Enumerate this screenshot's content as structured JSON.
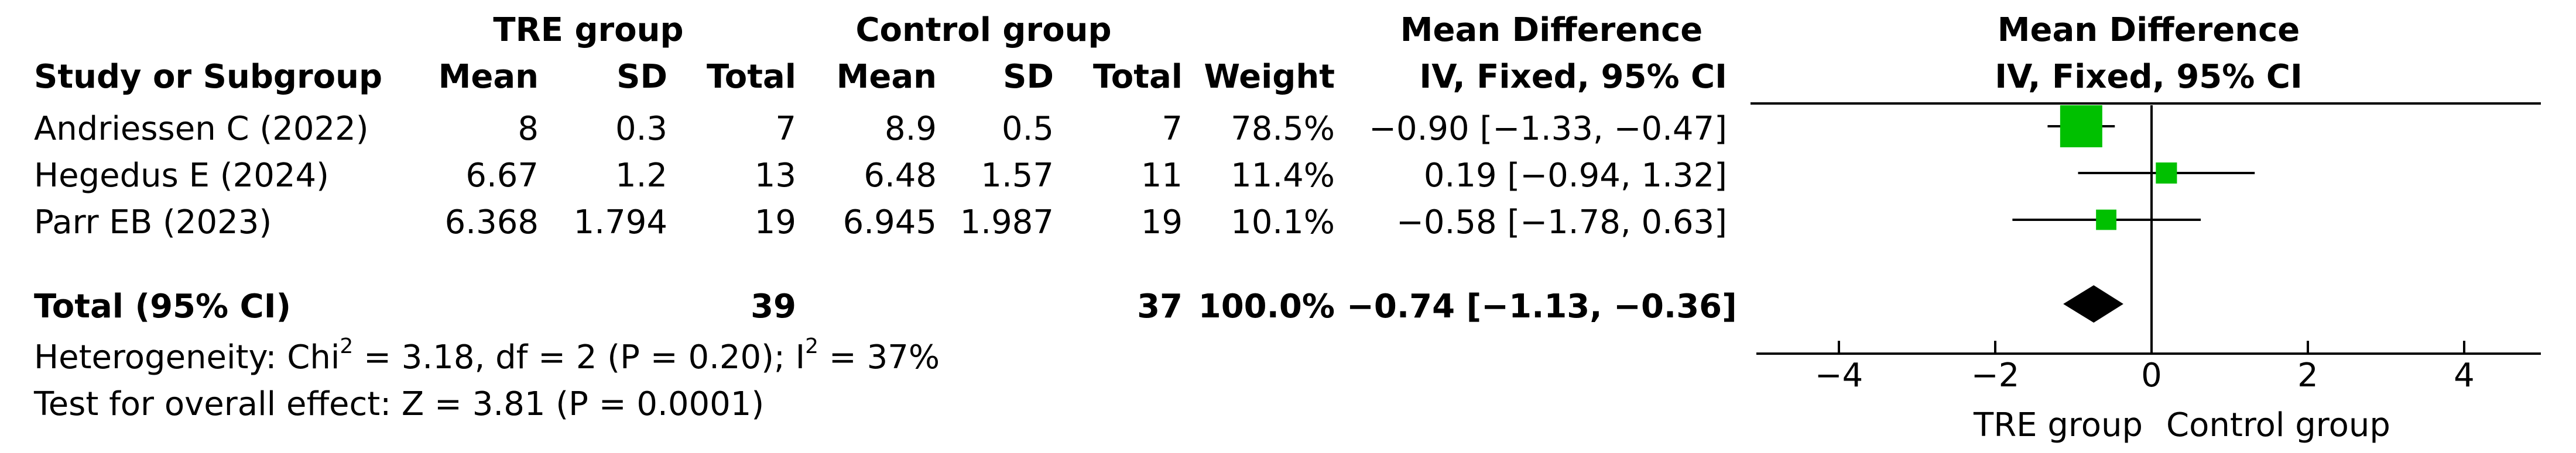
{
  "headers": {
    "tre_group": "TRE group",
    "control_group": "Control group",
    "md_left_title": "Mean Difference",
    "md_right_title": "Mean Difference",
    "study": "Study or Subgroup",
    "tre_mean": "Mean",
    "tre_sd": "SD",
    "tre_total": "Total",
    "ctrl_mean": "Mean",
    "ctrl_sd": "SD",
    "ctrl_total": "Total",
    "weight": "Weight",
    "md_left_method": "IV, Fixed, 95% CI",
    "md_right_method": "IV, Fixed, 95% CI"
  },
  "studies": [
    {
      "name": "Andriessen C (2022)",
      "tre_mean": "8",
      "tre_sd": "0.3",
      "tre_total": "7",
      "ctrl_mean": "8.9",
      "ctrl_sd": "0.5",
      "ctrl_total": "7",
      "weight": "78.5%",
      "ci_text": "−0.90 [−1.33, −0.47]"
    },
    {
      "name": "Hegedus E (2024)",
      "tre_mean": "6.67",
      "tre_sd": "1.2",
      "tre_total": "13",
      "ctrl_mean": "6.48",
      "ctrl_sd": "1.57",
      "ctrl_total": "11",
      "weight": "11.4%",
      "ci_text": "0.19 [−0.94, 1.32]"
    },
    {
      "name": "Parr EB (2023)",
      "tre_mean": "6.368",
      "tre_sd": "1.794",
      "tre_total": "19",
      "ctrl_mean": "6.945",
      "ctrl_sd": "1.987",
      "ctrl_total": "19",
      "weight": "10.1%",
      "ci_text": "−0.58 [−1.78, 0.63]"
    }
  ],
  "total": {
    "label": "Total (95% CI)",
    "tre_total": "39",
    "ctrl_total": "37",
    "weight": "100.0%",
    "ci_text": "−0.74 [−1.13, −0.36]"
  },
  "heterogeneity": {
    "prefix": "Heterogeneity: Chi",
    "chi_sup": "2",
    "middle": " = 3.18, df = 2 (P = 0.20); I",
    "i_sup": "2",
    "suffix": " = 37%"
  },
  "overall_effect": "Test for overall effect: Z = 3.81 (P = 0.0001)",
  "axis_labels": {
    "left": "TRE group",
    "right": "Control group"
  },
  "colors": {
    "study_marker": "#00c000",
    "pooled_diamond": "#000000",
    "lines": "#000000"
  },
  "chart_data": {
    "type": "forest",
    "x_ticks": [
      -4,
      -2,
      0,
      2,
      4
    ],
    "x_tick_labels": [
      "−4",
      "−2",
      "0",
      "2",
      "4"
    ],
    "xlim": [
      -5,
      5
    ],
    "reference_line": 0,
    "studies": [
      {
        "name": "Andriessen C (2022)",
        "md": -0.9,
        "lo": -1.33,
        "hi": -0.47,
        "weight": 78.5
      },
      {
        "name": "Hegedus E (2024)",
        "md": 0.19,
        "lo": -0.94,
        "hi": 1.32,
        "weight": 11.4
      },
      {
        "name": "Parr EB (2023)",
        "md": -0.58,
        "lo": -1.78,
        "hi": 0.63,
        "weight": 10.1
      }
    ],
    "pooled": {
      "md": -0.74,
      "lo": -1.13,
      "hi": -0.36
    }
  }
}
